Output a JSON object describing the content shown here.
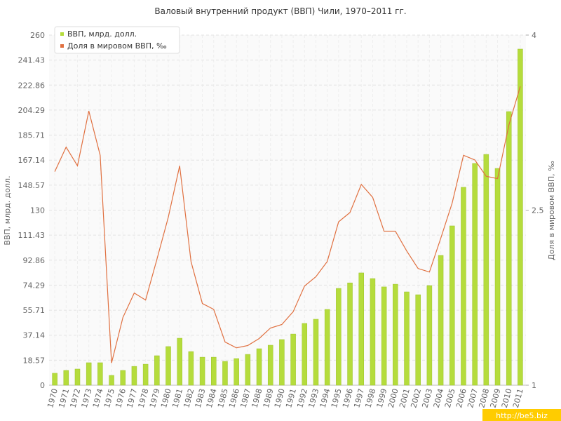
{
  "chart_data": {
    "type": "bar-line",
    "title": "Валовый внутренний продукт (ВВП) Чили, 1970–2011 гг.",
    "y_label": "ВВП, млрд. долл.",
    "y2_label": "Доля в мировом ВВП, ‰",
    "watermark": "http://be5.biz",
    "categories": [
      "1970",
      "1971",
      "1972",
      "1973",
      "1974",
      "1975",
      "1976",
      "1977",
      "1978",
      "1979",
      "1980",
      "1981",
      "1982",
      "1983",
      "1984",
      "1985",
      "1986",
      "1987",
      "1988",
      "1989",
      "1990",
      "1991",
      "1992",
      "1993",
      "1994",
      "1995",
      "1996",
      "1997",
      "1998",
      "1999",
      "2000",
      "2001",
      "2002",
      "2003",
      "2004",
      "2005",
      "2006",
      "2007",
      "2008",
      "2009",
      "2010",
      "2011"
    ],
    "series": [
      {
        "name": "ВВП, млрд. долл.",
        "type": "bar",
        "color": "#b5dc3c",
        "values": [
          8.9,
          11,
          12,
          16.7,
          16.7,
          7.3,
          11,
          14,
          15.6,
          21.9,
          28.7,
          34.9,
          25,
          20.8,
          20.8,
          17.7,
          19.8,
          22.9,
          27.1,
          29.7,
          33.9,
          38,
          45.9,
          49,
          56.3,
          71.9,
          76,
          83.4,
          79.2,
          73,
          75,
          69.3,
          67.2,
          74,
          96.4,
          118.3,
          147,
          164.7,
          171.4,
          161,
          203.2,
          249.6
        ]
      },
      {
        "name": "Доля в мировом ВВП, ‰",
        "type": "line",
        "axis": "y2",
        "color": "#e07040",
        "values": [
          2.83,
          3.04,
          2.88,
          3.35,
          2.97,
          1.19,
          1.58,
          1.79,
          1.73,
          2.08,
          2.44,
          2.88,
          2.06,
          1.7,
          1.65,
          1.37,
          1.32,
          1.34,
          1.4,
          1.49,
          1.52,
          1.63,
          1.85,
          1.93,
          2.06,
          2.4,
          2.48,
          2.72,
          2.61,
          2.32,
          2.32,
          2.15,
          2.0,
          1.97,
          2.26,
          2.56,
          2.97,
          2.93,
          2.79,
          2.77,
          3.23,
          3.56
        ]
      }
    ],
    "ylim": [
      0,
      260
    ],
    "yticks": [
      0,
      18.57,
      37.14,
      55.71,
      74.29,
      92.86,
      111.43,
      130,
      148.57,
      167.14,
      185.71,
      204.29,
      222.86,
      241.43,
      260
    ],
    "y2lim": [
      1,
      4
    ],
    "y2ticks": [
      1,
      2.5,
      4
    ],
    "grid": true,
    "legend": "top-left"
  }
}
